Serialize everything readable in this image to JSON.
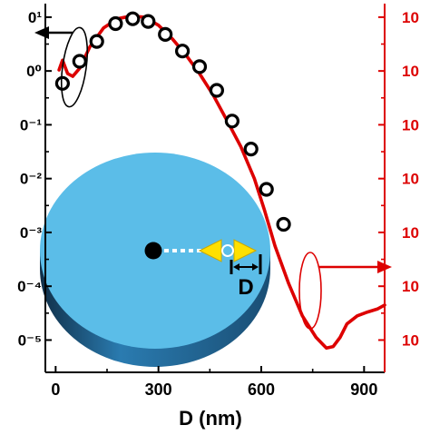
{
  "chart_data": {
    "type": "scatter",
    "xlabel": "D (nm)",
    "xlim": [
      -30,
      960
    ],
    "x_ticks": [
      0,
      300,
      600,
      900
    ],
    "x_tick_labels": [
      "0",
      "300",
      "600",
      "900"
    ],
    "left_axis": {
      "scale": "log",
      "ylim_exp": [
        -5.6,
        1.15
      ],
      "tick_exponents": [
        1,
        0,
        -1,
        -2,
        -3,
        -4,
        -5
      ],
      "tick_labels": [
        "0¹",
        "0⁰",
        "0⁻¹",
        "0⁻²",
        "0⁻³",
        "0⁻⁴",
        "0⁻⁵"
      ],
      "color": "#000000"
    },
    "right_axis": {
      "tick_labels": [
        "10",
        "10",
        "10",
        "10",
        "10",
        "10",
        "10"
      ],
      "color": "#dd0000"
    },
    "grid": false,
    "series": [
      {
        "marker": "open-circle",
        "axis": "left",
        "color": "#000000",
        "x": [
          20,
          70,
          120,
          175,
          225,
          270,
          320,
          370,
          420,
          470,
          515,
          570,
          615,
          665
        ],
        "y_exp": [
          -0.23,
          0.18,
          0.55,
          0.88,
          0.97,
          0.92,
          0.68,
          0.37,
          0.08,
          -0.36,
          -0.93,
          -1.45,
          -2.2,
          -2.85
        ]
      },
      {
        "marker": "line",
        "axis": "left",
        "color": "#dd0000",
        "x": [
          10,
          20,
          35,
          50,
          70,
          100,
          140,
          180,
          220,
          260,
          300,
          340,
          380,
          420,
          460,
          500,
          540,
          580,
          610,
          640,
          680,
          720,
          760,
          790,
          810,
          830,
          850,
          880,
          910,
          940,
          960
        ],
        "y_exp": [
          0.02,
          0.2,
          -0.05,
          -0.1,
          0.05,
          0.45,
          0.8,
          0.97,
          1.02,
          1.0,
          0.85,
          0.6,
          0.3,
          -0.05,
          -0.45,
          -0.92,
          -1.4,
          -2.0,
          -2.6,
          -3.25,
          -3.95,
          -4.55,
          -4.95,
          -5.15,
          -5.12,
          -4.95,
          -4.7,
          -4.55,
          -4.48,
          -4.42,
          -4.35
        ]
      }
    ],
    "annotations": {
      "inset_label": "D",
      "left_arrow_color": "#000000",
      "right_arrow_color": "#dd0000",
      "disk_top_color": "#5bbde8",
      "disk_side_color": "#1f5f8a",
      "center_dot_color": "#000000",
      "arrow_color": "#ffe000"
    }
  }
}
